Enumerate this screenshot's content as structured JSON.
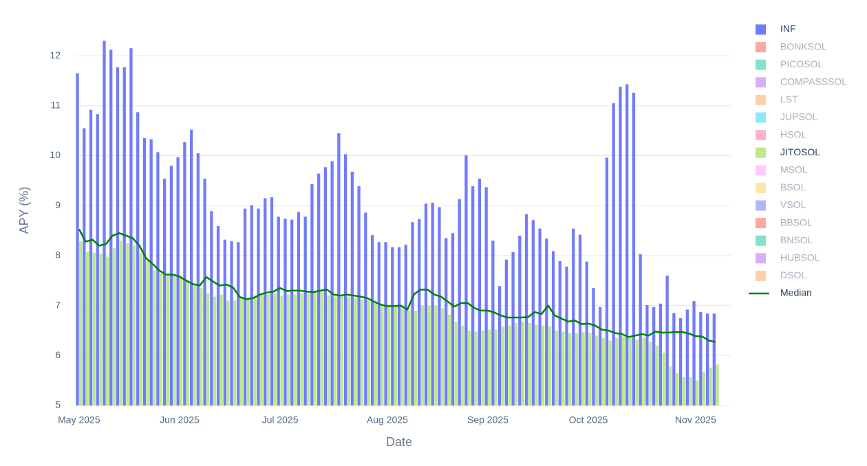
{
  "chart_data": {
    "type": "bar",
    "y_label": "APY (%)",
    "x_label": "Date",
    "categories": [
      "May 2025",
      null,
      null,
      null,
      null,
      null,
      null,
      null,
      null,
      null,
      null,
      null,
      null,
      null,
      null,
      "Jun 2025",
      null,
      null,
      null,
      null,
      null,
      null,
      null,
      null,
      null,
      null,
      null,
      null,
      null,
      null,
      "Jul 2025",
      null,
      null,
      null,
      null,
      null,
      null,
      null,
      null,
      null,
      null,
      null,
      null,
      null,
      null,
      null,
      "Aug 2025",
      null,
      null,
      null,
      null,
      null,
      null,
      null,
      null,
      null,
      null,
      null,
      null,
      null,
      null,
      "Sep 2025",
      null,
      null,
      null,
      null,
      null,
      null,
      null,
      null,
      null,
      null,
      null,
      null,
      null,
      null,
      "Oct 2025",
      null,
      null,
      null,
      null,
      null,
      null,
      null,
      null,
      null,
      null,
      null,
      null,
      null,
      null,
      null,
      "Nov 2025",
      null,
      null,
      null
    ],
    "series": [
      {
        "name": "INF",
        "color": "#636efa",
        "visible": true,
        "values": [
          11.65,
          10.55,
          10.92,
          10.83,
          12.3,
          12.12,
          11.77,
          11.77,
          12.15,
          10.87,
          10.35,
          10.33,
          10.07,
          9.54,
          9.8,
          9.97,
          10.27,
          10.52,
          10.05,
          9.54,
          8.89,
          8.59,
          8.32,
          8.29,
          8.27,
          8.94,
          9.01,
          8.94,
          9.15,
          9.17,
          8.78,
          8.74,
          8.72,
          8.87,
          8.78,
          9.43,
          9.64,
          9.77,
          9.89,
          10.45,
          10.03,
          9.68,
          9.39,
          8.86,
          8.41,
          8.27,
          8.27,
          8.17,
          8.17,
          8.22,
          8.67,
          8.73,
          9.04,
          9.06,
          8.97,
          8.35,
          8.45,
          9.13,
          10.01,
          9.39,
          9.54,
          9.37,
          8.3,
          7.39,
          7.92,
          8.07,
          8.4,
          8.83,
          8.71,
          8.54,
          8.34,
          8.09,
          7.89,
          7.78,
          8.54,
          8.42,
          7.88,
          7.35,
          6.97,
          9.96,
          11.05,
          11.38,
          11.43,
          11.26,
          8.03,
          7.01,
          6.97,
          7.04,
          7.6,
          6.85,
          6.75,
          6.92,
          7.09,
          6.87,
          6.84,
          6.84
        ]
      },
      {
        "name": "BONKSOL",
        "color": "#EF553B",
        "visible": false
      },
      {
        "name": "PICOSOL",
        "color": "#00cc96",
        "visible": false
      },
      {
        "name": "COMPASSSOL",
        "color": "#ab63fa",
        "visible": false
      },
      {
        "name": "LST",
        "color": "#FFA15A",
        "visible": false
      },
      {
        "name": "JUPSOL",
        "color": "#19d3f3",
        "visible": false
      },
      {
        "name": "HSOL",
        "color": "#FF6692",
        "visible": false
      },
      {
        "name": "JITOSOL",
        "color": "#B6E880",
        "visible": true,
        "values": [
          8.28,
          8.08,
          8.06,
          8.04,
          7.98,
          8.15,
          8.3,
          8.25,
          8.2,
          8.05,
          7.9,
          7.7,
          7.65,
          7.6,
          7.6,
          7.58,
          7.5,
          7.4,
          7.35,
          7.25,
          7.18,
          7.22,
          7.1,
          7.1,
          7.15,
          7.15,
          7.2,
          7.25,
          7.22,
          7.25,
          7.2,
          7.22,
          7.22,
          7.25,
          7.25,
          7.28,
          7.3,
          7.2,
          7.18,
          7.2,
          7.18,
          7.15,
          7.12,
          7.1,
          7.05,
          7.0,
          6.98,
          6.98,
          6.97,
          6.9,
          6.9,
          7.0,
          7.0,
          7.0,
          6.95,
          6.82,
          6.68,
          6.6,
          6.5,
          6.48,
          6.5,
          6.52,
          6.52,
          6.58,
          6.6,
          6.65,
          6.68,
          6.65,
          6.62,
          6.6,
          6.58,
          6.5,
          6.48,
          6.45,
          6.45,
          6.47,
          6.45,
          6.4,
          6.35,
          6.3,
          6.35,
          6.38,
          6.35,
          6.32,
          6.35,
          6.28,
          6.2,
          6.06,
          5.78,
          5.65,
          5.57,
          5.57,
          5.5,
          5.68,
          5.76,
          5.82
        ]
      },
      {
        "name": "MSOL",
        "color": "#FF97FF",
        "visible": false
      },
      {
        "name": "BSOL",
        "color": "#FECB52",
        "visible": false
      },
      {
        "name": "VSOL",
        "color": "#636efa",
        "visible": false
      },
      {
        "name": "BBSOL",
        "color": "#EF553B",
        "visible": false
      },
      {
        "name": "BNSOL",
        "color": "#00cc96",
        "visible": false
      },
      {
        "name": "HUBSOL",
        "color": "#ab63fa",
        "visible": false
      },
      {
        "name": "DSOL",
        "color": "#FFA15A",
        "visible": false
      },
      {
        "name": "Median",
        "type": "line",
        "color": "#008000",
        "visible": true,
        "values": [
          8.53,
          8.28,
          8.32,
          8.2,
          8.23,
          8.4,
          8.45,
          8.4,
          8.35,
          8.2,
          7.95,
          7.83,
          7.7,
          7.62,
          7.62,
          7.58,
          7.5,
          7.43,
          7.4,
          7.57,
          7.48,
          7.4,
          7.42,
          7.36,
          7.17,
          7.13,
          7.15,
          7.22,
          7.26,
          7.28,
          7.35,
          7.29,
          7.3,
          7.3,
          7.28,
          7.27,
          7.3,
          7.32,
          7.22,
          7.2,
          7.22,
          7.2,
          7.18,
          7.15,
          7.08,
          7.02,
          6.99,
          6.99,
          7.0,
          6.92,
          7.23,
          7.32,
          7.32,
          7.22,
          7.18,
          7.08,
          6.98,
          7.05,
          7.05,
          6.95,
          6.9,
          6.9,
          6.86,
          6.8,
          6.76,
          6.76,
          6.76,
          6.77,
          6.87,
          6.83,
          7.0,
          6.8,
          6.74,
          6.68,
          6.7,
          6.63,
          6.64,
          6.6,
          6.52,
          6.5,
          6.45,
          6.43,
          6.37,
          6.4,
          6.43,
          6.4,
          6.48,
          6.46,
          6.46,
          6.47,
          6.47,
          6.44,
          6.39,
          6.38,
          6.3,
          6.27
        ]
      }
    ],
    "ylim": [
      5,
      12.6
    ],
    "yticks": [
      5,
      6,
      7,
      8,
      9,
      10,
      11,
      12
    ],
    "grid": true,
    "legend": "right"
  }
}
